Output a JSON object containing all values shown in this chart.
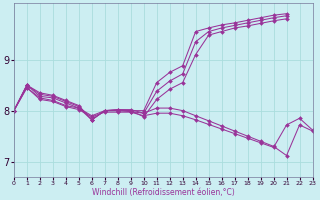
{
  "xlabel": "Windchill (Refroidissement éolien,°C)",
  "bg_color": "#cceef2",
  "grid_color": "#aadddd",
  "line_color": "#993399",
  "x_ticks": [
    0,
    1,
    2,
    3,
    4,
    5,
    6,
    7,
    8,
    9,
    10,
    11,
    12,
    13,
    14,
    15,
    16,
    17,
    18,
    19,
    20,
    21,
    22,
    23
  ],
  "y_ticks": [
    7,
    8,
    9
  ],
  "xlim": [
    0,
    23
  ],
  "ylim": [
    6.7,
    10.1
  ],
  "series": [
    {
      "x": [
        0,
        1,
        2,
        3,
        4,
        5,
        6,
        7,
        8,
        9,
        10,
        11,
        12,
        13,
        14,
        15,
        16,
        17,
        18,
        19,
        20,
        21,
        22,
        23
      ],
      "y": [
        8.0,
        8.5,
        8.35,
        8.3,
        8.2,
        8.1,
        7.82,
        8.0,
        8.0,
        8.0,
        8.0,
        8.55,
        8.75,
        8.88,
        9.55,
        9.62,
        9.68,
        9.72,
        9.77,
        9.82,
        9.87,
        9.9,
        null,
        null
      ]
    },
    {
      "x": [
        0,
        1,
        2,
        3,
        4,
        5,
        6,
        7,
        8,
        9,
        10,
        11,
        12,
        13,
        14,
        15,
        16,
        17,
        18,
        19,
        20,
        21,
        22,
        23
      ],
      "y": [
        8.0,
        8.5,
        8.32,
        8.28,
        8.18,
        8.08,
        7.82,
        8.0,
        8.02,
        8.02,
        7.95,
        8.38,
        8.58,
        8.72,
        9.35,
        9.55,
        9.62,
        9.67,
        9.72,
        9.77,
        9.82,
        9.86,
        null,
        null
      ]
    },
    {
      "x": [
        0,
        1,
        2,
        3,
        4,
        5,
        6,
        7,
        8,
        9,
        10,
        11,
        12,
        13,
        14,
        15,
        16,
        17,
        18,
        19,
        20,
        21,
        22,
        23
      ],
      "y": [
        8.0,
        8.5,
        8.28,
        8.25,
        8.15,
        8.05,
        7.82,
        8.0,
        8.02,
        8.0,
        7.88,
        8.22,
        8.42,
        8.55,
        9.1,
        9.48,
        9.55,
        9.62,
        9.66,
        9.71,
        9.76,
        9.8,
        null,
        null
      ]
    },
    {
      "x": [
        0,
        1,
        2,
        3,
        4,
        5,
        6,
        7,
        8,
        9,
        10,
        11,
        12,
        13,
        14,
        15,
        16,
        17,
        18,
        19,
        20,
        21,
        22,
        23
      ],
      "y": [
        8.0,
        8.45,
        8.25,
        8.2,
        8.1,
        8.05,
        7.9,
        8.0,
        8.0,
        7.98,
        7.95,
        8.05,
        8.05,
        8.0,
        7.9,
        7.8,
        7.7,
        7.6,
        7.5,
        7.4,
        7.3,
        7.12,
        7.72,
        7.6
      ]
    },
    {
      "x": [
        0,
        1,
        2,
        3,
        4,
        5,
        6,
        7,
        8,
        9,
        10,
        11,
        12,
        13,
        14,
        15,
        16,
        17,
        18,
        19,
        20,
        21,
        22,
        23
      ],
      "y": [
        8.0,
        8.45,
        8.22,
        8.18,
        8.08,
        8.02,
        7.88,
        7.97,
        7.97,
        7.97,
        7.9,
        7.95,
        7.95,
        7.9,
        7.82,
        7.73,
        7.64,
        7.55,
        7.46,
        7.37,
        7.28,
        7.72,
        7.85,
        7.62
      ]
    }
  ]
}
